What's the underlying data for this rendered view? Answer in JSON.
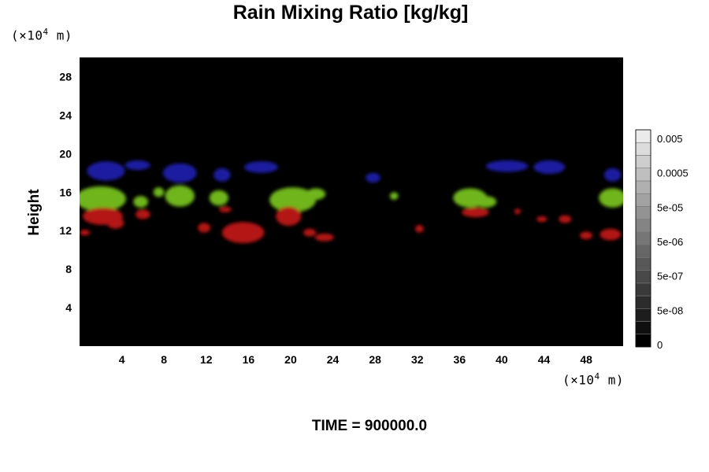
{
  "chart_data": {
    "type": "heatmap",
    "title": "Rain Mixing Ratio [kg/kg]",
    "ylabel": "Height",
    "y_unit_label": {
      "prefix": "(×10",
      "exp": "4",
      "suffix": " m)"
    },
    "x_unit_label": {
      "prefix": "(×10",
      "exp": "4",
      "suffix": " m)"
    },
    "xlim": [
      0,
      51.5
    ],
    "ylim": [
      0,
      30
    ],
    "x_ticks": [
      "4",
      "8",
      "12",
      "16",
      "20",
      "24",
      "28",
      "32",
      "36",
      "40",
      "44",
      "48"
    ],
    "y_ticks": [
      "4",
      "8",
      "12",
      "16",
      "20",
      "24",
      "28"
    ],
    "background_color": "#000000",
    "grid": false,
    "colorbar": {
      "position": "right",
      "labels": [
        "0",
        "5e-08",
        "5e-07",
        "5e-06",
        "5e-05",
        "0.0005",
        "0.005"
      ],
      "levels": 17
    },
    "regions": [
      {
        "color": "#1a1aa0",
        "name": "blue layer",
        "blobs": [
          [
            2.5,
            18.2,
            1.8,
            1.0
          ],
          [
            5.5,
            18.8,
            1.2,
            0.5
          ],
          [
            9.5,
            18.0,
            1.6,
            1.0
          ],
          [
            13.5,
            17.8,
            0.8,
            0.7
          ],
          [
            17.2,
            18.6,
            1.6,
            0.6
          ],
          [
            27.8,
            17.5,
            0.7,
            0.5
          ],
          [
            40.5,
            18.7,
            2.0,
            0.6
          ],
          [
            44.5,
            18.6,
            1.5,
            0.7
          ],
          [
            50.5,
            17.8,
            0.8,
            0.7
          ]
        ]
      },
      {
        "color": "#6fb51a",
        "name": "green layer",
        "blobs": [
          [
            2.0,
            15.3,
            2.4,
            1.3
          ],
          [
            5.8,
            15.0,
            0.7,
            0.6
          ],
          [
            7.5,
            16.0,
            0.5,
            0.5
          ],
          [
            9.5,
            15.6,
            1.4,
            1.1
          ],
          [
            13.2,
            15.4,
            0.9,
            0.8
          ],
          [
            20.2,
            15.2,
            2.2,
            1.3
          ],
          [
            22.4,
            15.8,
            0.9,
            0.6
          ],
          [
            29.8,
            15.6,
            0.4,
            0.4
          ],
          [
            37.0,
            15.4,
            1.6,
            1.0
          ],
          [
            38.5,
            15.0,
            1.0,
            0.6
          ],
          [
            50.5,
            15.4,
            1.3,
            1.0
          ]
        ]
      },
      {
        "color": "#b41212",
        "name": "red layer",
        "blobs": [
          [
            2.2,
            13.5,
            1.9,
            0.9
          ],
          [
            3.4,
            12.8,
            0.8,
            0.6
          ],
          [
            0.5,
            11.8,
            0.5,
            0.3
          ],
          [
            6.0,
            13.7,
            0.7,
            0.5
          ],
          [
            11.8,
            12.3,
            0.6,
            0.5
          ],
          [
            13.8,
            14.2,
            0.6,
            0.3
          ],
          [
            15.5,
            11.8,
            2.0,
            1.1
          ],
          [
            19.8,
            13.5,
            1.2,
            1.0
          ],
          [
            21.8,
            11.8,
            0.6,
            0.4
          ],
          [
            23.2,
            11.3,
            0.9,
            0.4
          ],
          [
            32.2,
            12.2,
            0.4,
            0.4
          ],
          [
            37.5,
            13.9,
            1.3,
            0.5
          ],
          [
            41.5,
            14.0,
            0.3,
            0.3
          ],
          [
            43.8,
            13.2,
            0.5,
            0.3
          ],
          [
            46.0,
            13.2,
            0.6,
            0.4
          ],
          [
            48.0,
            11.5,
            0.6,
            0.4
          ],
          [
            50.3,
            11.6,
            1.0,
            0.6
          ]
        ]
      }
    ]
  },
  "footer": {
    "time_label": "TIME = 900000.0"
  }
}
